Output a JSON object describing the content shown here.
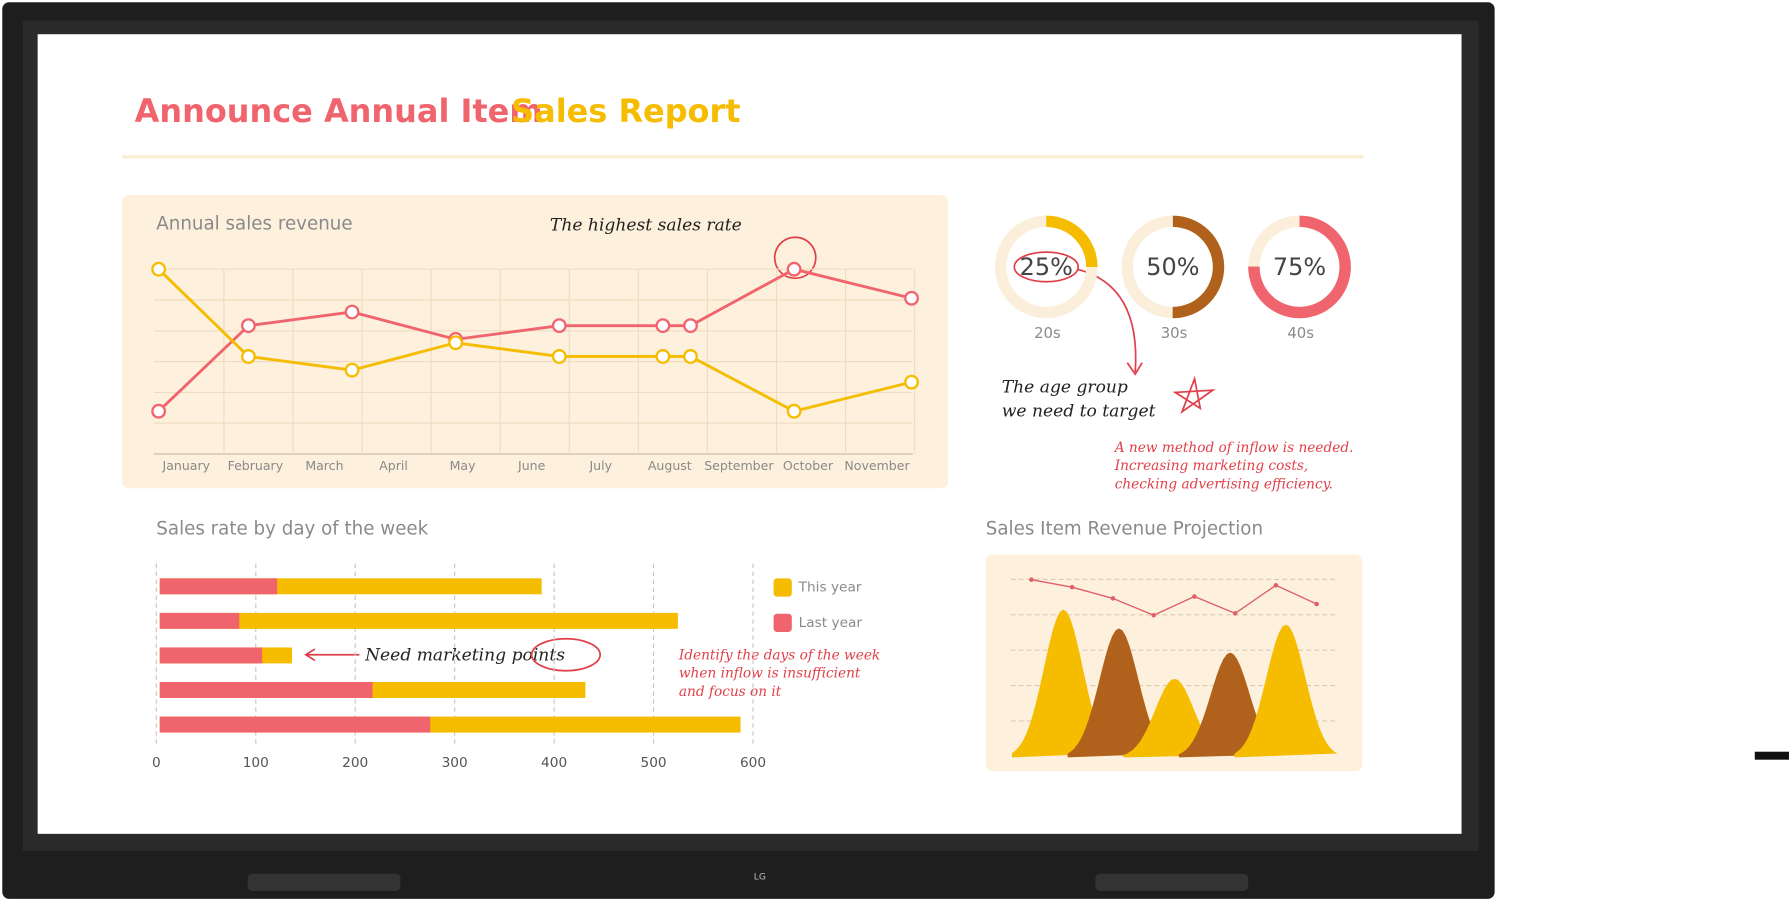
{
  "title": {
    "part1": "Announce Annual Item",
    "part2": "Sales Report"
  },
  "brand": "LG",
  "annotations": {
    "highest": "The highest sales rate",
    "target": [
      "The age group",
      "we need to target"
    ],
    "inflow": [
      "A new method of inflow is needed.",
      "Increasing marketing costs,",
      "checking advertising efficiency."
    ],
    "points": "Need marketing points",
    "days": [
      "Identify the days of the week",
      "when inflow is insufficient",
      "and focus on it"
    ]
  },
  "chart_data": [
    {
      "type": "line",
      "title": "Annual sales revenue",
      "x": [
        -0.4,
        0.9,
        2.4,
        3.9,
        5.4,
        6.9,
        7.3,
        8.8,
        10.5
      ],
      "series": [
        {
          "color": "#f0646e",
          "values": [
            13,
            63,
            71,
            55,
            63,
            63,
            63,
            96,
            79
          ]
        },
        {
          "color": "#f5bc00",
          "values": [
            96,
            45,
            37,
            53,
            45,
            45,
            45,
            13,
            30
          ]
        }
      ],
      "xlim": [
        -0.5,
        10.6
      ],
      "xticks": [
        {
          "value": 0,
          "label": "January"
        },
        {
          "value": 1,
          "label": "February"
        },
        {
          "value": 2,
          "label": "March"
        },
        {
          "value": 3,
          "label": "April"
        },
        {
          "value": 4,
          "label": "May"
        },
        {
          "value": 5,
          "label": "June"
        },
        {
          "value": 6,
          "label": "July"
        },
        {
          "value": 7,
          "label": "August"
        },
        {
          "value": 8,
          "label": "September"
        },
        {
          "value": 9,
          "label": "October"
        },
        {
          "value": 10,
          "label": "November"
        }
      ],
      "ylim": [
        0,
        100
      ],
      "grid": true
    },
    {
      "type": "donut",
      "categories": [
        "20s",
        "30s",
        "40s"
      ],
      "values": [
        25,
        50,
        75
      ],
      "value_labels": [
        "25%",
        "50%",
        "75%"
      ],
      "colors": [
        "#f5bc00",
        "#b0621c",
        "#f0646e"
      ]
    },
    {
      "type": "bar",
      "title": "Sales rate by day of the week",
      "categories": [
        null,
        null,
        null,
        null,
        null
      ],
      "series": [
        {
          "name": "This year",
          "color": "#f5bc00",
          "values": [
            384,
            521,
            133,
            428,
            584
          ]
        },
        {
          "name": "Last year",
          "color": "#f0646e",
          "values": [
            118,
            80,
            103,
            214,
            272
          ]
        }
      ],
      "xlim": [
        0,
        600
      ],
      "xticks": [
        0,
        100,
        200,
        300,
        400,
        500,
        600
      ],
      "grid": true
    },
    {
      "type": "area",
      "title": "Sales Item Revenue Projection",
      "ylim": [
        0,
        100
      ],
      "line": {
        "color": "#e0606a",
        "values": [
          95,
          91,
          85,
          76,
          86,
          77,
          92,
          82
        ]
      },
      "peaks": {
        "colors": [
          "#f5bc00",
          "#b0621c",
          "#f5bc00",
          "#b0621c",
          "#f5bc00"
        ],
        "values": [
          79,
          69,
          42,
          56,
          71
        ]
      }
    }
  ]
}
